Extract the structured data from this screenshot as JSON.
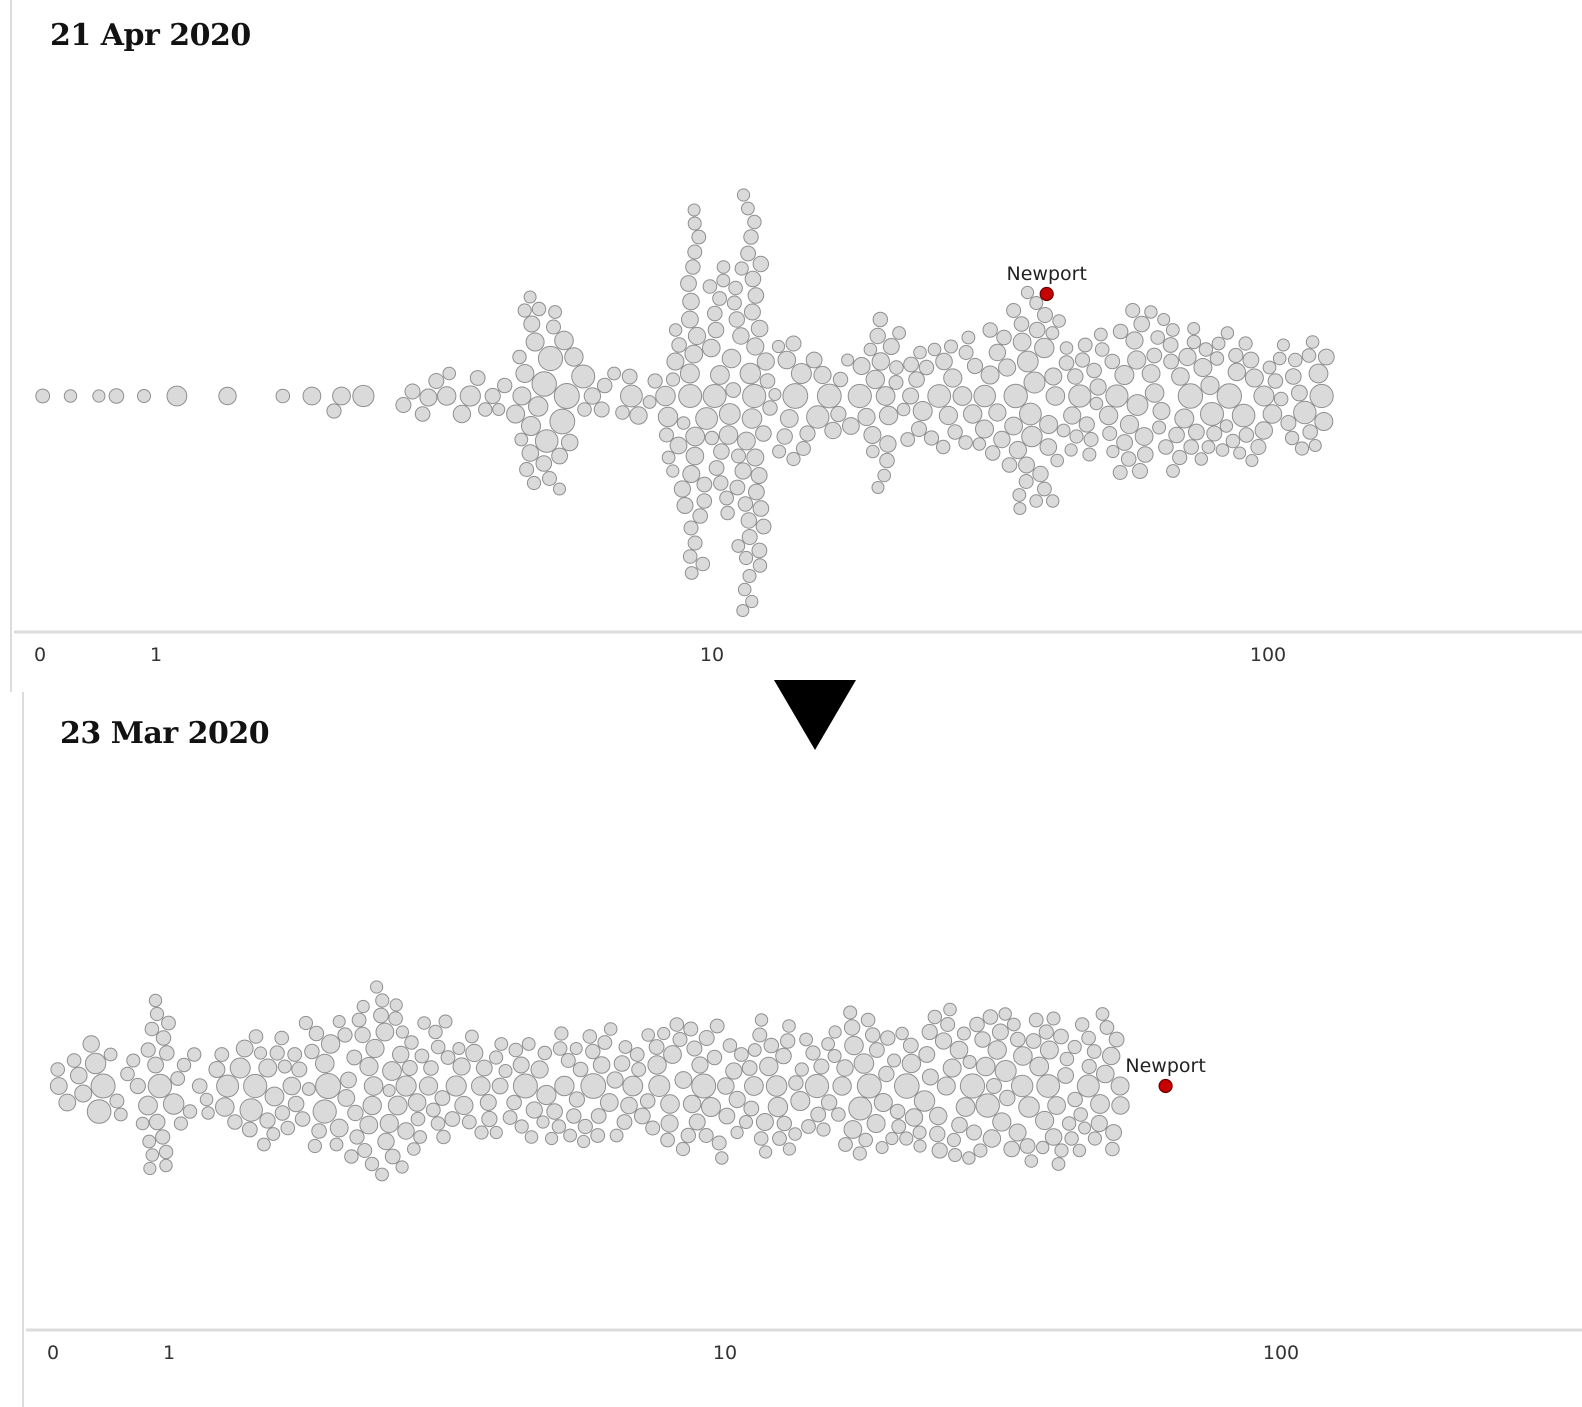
{
  "chart_data": [
    {
      "type": "beeswarm",
      "title": "21 Apr 2020",
      "x_scale": "symlog",
      "xticks": [
        "0",
        "1",
        "10",
        "100"
      ],
      "highlight": {
        "label": "Newport",
        "value": 40,
        "color": "#c70000"
      },
      "point_color": "#dadada",
      "grid": false,
      "distribution": {
        "count": 380,
        "values": [
          0,
          2.9,
          4.5,
          4.9,
          5.6,
          8.2,
          9.1,
          9.3,
          10.1,
          10.9,
          11.5,
          11.9,
          12.4,
          14.6,
          19.2,
          21,
          25,
          30,
          35,
          38,
          42,
          48,
          55,
          62,
          70,
          80,
          92,
          110,
          128
        ]
      }
    },
    {
      "type": "beeswarm",
      "title": "23 Mar 2020",
      "x_scale": "symlog",
      "xticks": [
        "0",
        "1",
        "10",
        "100"
      ],
      "highlight": {
        "label": "Newport",
        "value": 62,
        "color": "#c70000"
      },
      "point_color": "#dadada",
      "grid": false,
      "distribution": {
        "count": 390,
        "values": [
          0,
          0.8,
          1,
          1.4,
          1.7,
          2.1,
          2.4,
          2.7,
          3.2,
          4,
          5,
          6,
          7.5,
          9,
          11,
          13,
          16,
          19,
          23,
          27,
          32,
          38,
          44,
          52
        ]
      }
    }
  ],
  "change_arrow_icon": "down-triangle-icon"
}
